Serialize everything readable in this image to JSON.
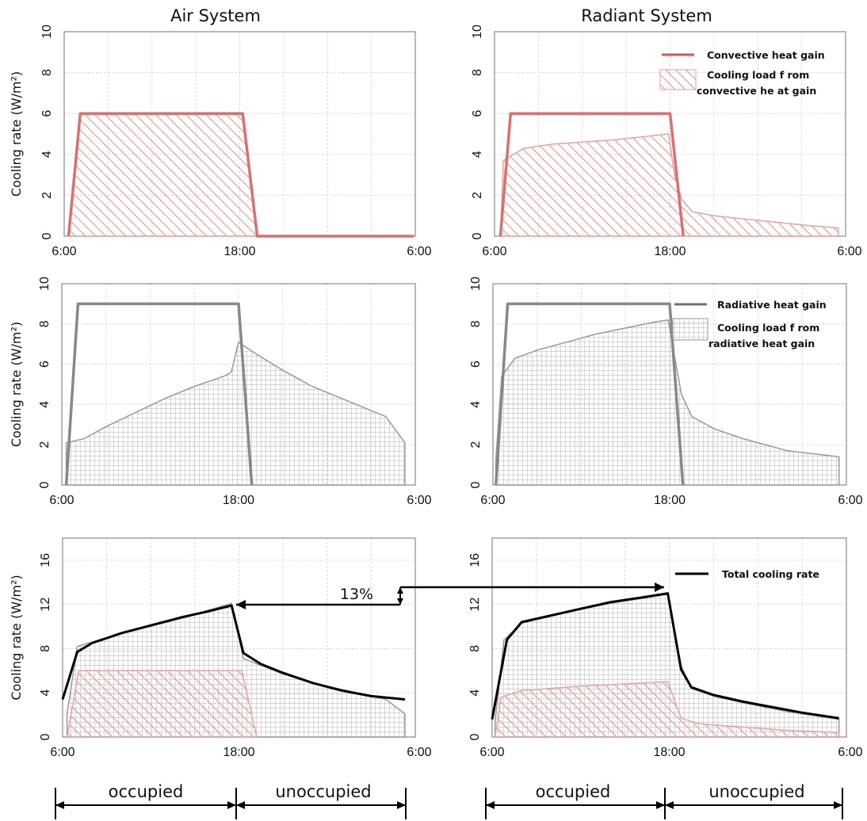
{
  "titles": [
    "Air System",
    "Radiant System"
  ],
  "ylabel": "Cooling rate (W/m²)",
  "x_ticks": [
    "6:00",
    "18:00",
    "6:00"
  ],
  "legends": {
    "convective_line": "Convective heat gain",
    "convective_area": [
      "Cooling load f rom",
      "convective he at gain"
    ],
    "radiative_line": "Radiative heat gain",
    "radiative_area": [
      "Cooling load f rom",
      "radiative heat gain"
    ],
    "total_line": "Total cooling rate"
  },
  "annotation": "13%",
  "periods": [
    "occupied",
    "unoccupied"
  ],
  "colors": {
    "convective": "#d9716f",
    "radiative": "#888888",
    "total": "#000000",
    "grid": "#dcdcdc"
  },
  "chart_data": [
    {
      "type": "area",
      "panel": "air-convective",
      "title": "Air System",
      "ylabel": "Cooling rate (W/m²)",
      "x_unit": "hours after 6:00",
      "xlim": [
        0,
        24
      ],
      "ylim": [
        0,
        10
      ],
      "yticks": [
        0,
        2,
        4,
        6,
        8,
        10
      ],
      "grid": true,
      "series": [
        {
          "name": "Convective heat gain",
          "kind": "line",
          "points": [
            [
              0.3,
              0
            ],
            [
              1.1,
              6
            ],
            [
              12.2,
              6
            ],
            [
              13.2,
              0
            ],
            [
              23.9,
              0
            ]
          ]
        },
        {
          "name": "Cooling load from convective heat gain",
          "kind": "hatched-area",
          "points": [
            [
              0.3,
              0
            ],
            [
              1.1,
              6
            ],
            [
              12.2,
              6
            ],
            [
              13.2,
              0
            ]
          ]
        }
      ]
    },
    {
      "type": "area",
      "panel": "radiant-convective",
      "title": "Radiant System",
      "ylabel": "Cooling rate (W/m²)",
      "x_unit": "hours after 6:00",
      "xlim": [
        0,
        24
      ],
      "ylim": [
        0,
        10
      ],
      "yticks": [
        0,
        2,
        4,
        6,
        8,
        10
      ],
      "grid": true,
      "legend": "top-right",
      "series": [
        {
          "name": "Convective heat gain",
          "kind": "line",
          "points": [
            [
              0.4,
              0
            ],
            [
              1.1,
              6
            ],
            [
              12.0,
              6
            ],
            [
              12.9,
              0
            ]
          ]
        },
        {
          "name": "Cooling load from convective heat gain",
          "kind": "hatched-area",
          "points": [
            [
              0.4,
              0
            ],
            [
              0.6,
              3.7
            ],
            [
              2.0,
              4.3
            ],
            [
              4.0,
              4.5
            ],
            [
              6.0,
              4.6
            ],
            [
              8.0,
              4.7
            ],
            [
              10.0,
              4.85
            ],
            [
              11.9,
              5.0
            ],
            [
              12.3,
              3.0
            ],
            [
              12.8,
              1.8
            ],
            [
              13.5,
              1.2
            ],
            [
              15.0,
              1.0
            ],
            [
              17.0,
              0.85
            ],
            [
              19.0,
              0.7
            ],
            [
              21.0,
              0.55
            ],
            [
              23.5,
              0.4
            ],
            [
              23.5,
              0
            ]
          ]
        }
      ]
    },
    {
      "type": "area",
      "panel": "air-radiative",
      "ylabel": "Cooling rate (W/m²)",
      "x_unit": "hours after 6:00",
      "xlim": [
        0,
        24
      ],
      "ylim": [
        0,
        10
      ],
      "yticks": [
        0,
        2,
        4,
        6,
        8,
        10
      ],
      "grid": true,
      "series": [
        {
          "name": "Radiative heat gain",
          "kind": "line",
          "points": [
            [
              0.3,
              0
            ],
            [
              1.1,
              9
            ],
            [
              12.0,
              9
            ],
            [
              12.9,
              0
            ]
          ]
        },
        {
          "name": "Cooling load from radiative heat gain",
          "kind": "hatched-area",
          "points": [
            [
              0.3,
              2.1
            ],
            [
              1.5,
              2.3
            ],
            [
              3.0,
              2.9
            ],
            [
              5.0,
              3.6
            ],
            [
              7.0,
              4.3
            ],
            [
              9.0,
              4.9
            ],
            [
              11.0,
              5.4
            ],
            [
              11.5,
              5.6
            ],
            [
              12.0,
              7.1
            ],
            [
              13.0,
              6.6
            ],
            [
              15.0,
              5.7
            ],
            [
              17.0,
              4.9
            ],
            [
              19.0,
              4.3
            ],
            [
              22.0,
              3.4
            ],
            [
              23.3,
              2.1
            ]
          ]
        }
      ]
    },
    {
      "type": "area",
      "panel": "radiant-radiative",
      "ylabel": "Cooling rate (W/m²)",
      "x_unit": "hours after 6:00",
      "xlim": [
        0,
        24
      ],
      "ylim": [
        0,
        10
      ],
      "yticks": [
        0,
        2,
        4,
        6,
        8,
        10
      ],
      "grid": true,
      "legend": "top-right",
      "series": [
        {
          "name": "Radiative heat gain",
          "kind": "line",
          "points": [
            [
              0.2,
              0
            ],
            [
              1.0,
              9
            ],
            [
              12.0,
              9
            ],
            [
              12.9,
              0
            ]
          ]
        },
        {
          "name": "Cooling load from radiative heat gain",
          "kind": "hatched-area",
          "points": [
            [
              0.2,
              1.3
            ],
            [
              0.6,
              5.4
            ],
            [
              1.5,
              6.3
            ],
            [
              3.0,
              6.7
            ],
            [
              5.0,
              7.1
            ],
            [
              7.0,
              7.5
            ],
            [
              9.0,
              7.8
            ],
            [
              11.0,
              8.1
            ],
            [
              11.9,
              8.2
            ],
            [
              12.3,
              6.5
            ],
            [
              12.8,
              4.5
            ],
            [
              13.5,
              3.4
            ],
            [
              15.0,
              2.8
            ],
            [
              17.0,
              2.3
            ],
            [
              20.0,
              1.7
            ],
            [
              23.5,
              1.4
            ]
          ]
        }
      ]
    },
    {
      "type": "area",
      "panel": "air-total",
      "ylabel": "Cooling rate (W/m²)",
      "x_unit": "hours after 6:00",
      "xlim": [
        0,
        24
      ],
      "ylim": [
        0,
        18
      ],
      "yticks": [
        0,
        4,
        8,
        12,
        16
      ],
      "grid": true,
      "series": [
        {
          "name": "Total cooling rate",
          "kind": "line",
          "points": [
            [
              0.0,
              3.4
            ],
            [
              1.0,
              7.7
            ],
            [
              2.0,
              8.5
            ],
            [
              4.0,
              9.4
            ],
            [
              6.0,
              10.1
            ],
            [
              8.0,
              10.8
            ],
            [
              10.0,
              11.4
            ],
            [
              11.5,
              11.9
            ],
            [
              12.3,
              7.6
            ],
            [
              13.5,
              6.6
            ],
            [
              15.0,
              5.8
            ],
            [
              17.0,
              4.9
            ],
            [
              19.0,
              4.2
            ],
            [
              21.0,
              3.7
            ],
            [
              23.3,
              3.4
            ]
          ]
        },
        {
          "name": "Cooling load from radiative heat gain",
          "kind": "hatched-area",
          "points": [
            [
              0.3,
              2.1
            ],
            [
              1.0,
              8.2
            ],
            [
              2.5,
              8.8
            ],
            [
              5.0,
              9.7
            ],
            [
              8.0,
              10.7
            ],
            [
              11.5,
              12.1
            ],
            [
              12.3,
              7.1
            ],
            [
              15.0,
              5.7
            ],
            [
              17.0,
              4.9
            ],
            [
              19.0,
              4.3
            ],
            [
              22.0,
              3.4
            ],
            [
              23.3,
              2.1
            ]
          ]
        },
        {
          "name": "Cooling load from convective heat gain",
          "kind": "hatched-area",
          "points": [
            [
              0.3,
              0
            ],
            [
              1.1,
              6
            ],
            [
              12.2,
              6
            ],
            [
              13.2,
              0
            ]
          ]
        }
      ]
    },
    {
      "type": "area",
      "panel": "radiant-total",
      "ylabel": "Cooling rate (W/m²)",
      "x_unit": "hours after 6:00",
      "xlim": [
        0,
        24
      ],
      "ylim": [
        0,
        18
      ],
      "yticks": [
        0,
        4,
        8,
        12,
        16
      ],
      "grid": true,
      "legend": "top-right",
      "series": [
        {
          "name": "Total cooling rate",
          "kind": "line",
          "points": [
            [
              0.0,
              1.6
            ],
            [
              1.0,
              8.8
            ],
            [
              2.0,
              10.4
            ],
            [
              4.0,
              11.0
            ],
            [
              6.0,
              11.6
            ],
            [
              8.0,
              12.2
            ],
            [
              10.0,
              12.6
            ],
            [
              11.9,
              13.0
            ],
            [
              12.8,
              6.1
            ],
            [
              13.5,
              4.5
            ],
            [
              15.0,
              3.8
            ],
            [
              17.0,
              3.2
            ],
            [
              19.0,
              2.7
            ],
            [
              21.0,
              2.2
            ],
            [
              23.5,
              1.7
            ]
          ]
        },
        {
          "name": "Cooling load from radiative heat gain",
          "kind": "hatched-area",
          "points": [
            [
              0.2,
              1.4
            ],
            [
              0.8,
              8.8
            ],
            [
              2.0,
              10.3
            ],
            [
              5.0,
              11.3
            ],
            [
              8.0,
              12.1
            ],
            [
              11.9,
              12.9
            ],
            [
              12.8,
              6.5
            ],
            [
              13.5,
              4.4
            ],
            [
              15.0,
              3.7
            ],
            [
              17.0,
              3.1
            ],
            [
              20.0,
              2.3
            ],
            [
              23.5,
              1.6
            ]
          ]
        },
        {
          "name": "Cooling load from convective heat gain",
          "kind": "hatched-area",
          "points": [
            [
              0.2,
              0
            ],
            [
              0.6,
              3.6
            ],
            [
              2.0,
              4.2
            ],
            [
              6.0,
              4.6
            ],
            [
              11.9,
              5.0
            ],
            [
              12.8,
              1.7
            ],
            [
              14.0,
              1.2
            ],
            [
              17.0,
              0.9
            ],
            [
              20.0,
              0.6
            ],
            [
              23.5,
              0.4
            ],
            [
              23.5,
              0
            ]
          ]
        }
      ]
    }
  ]
}
